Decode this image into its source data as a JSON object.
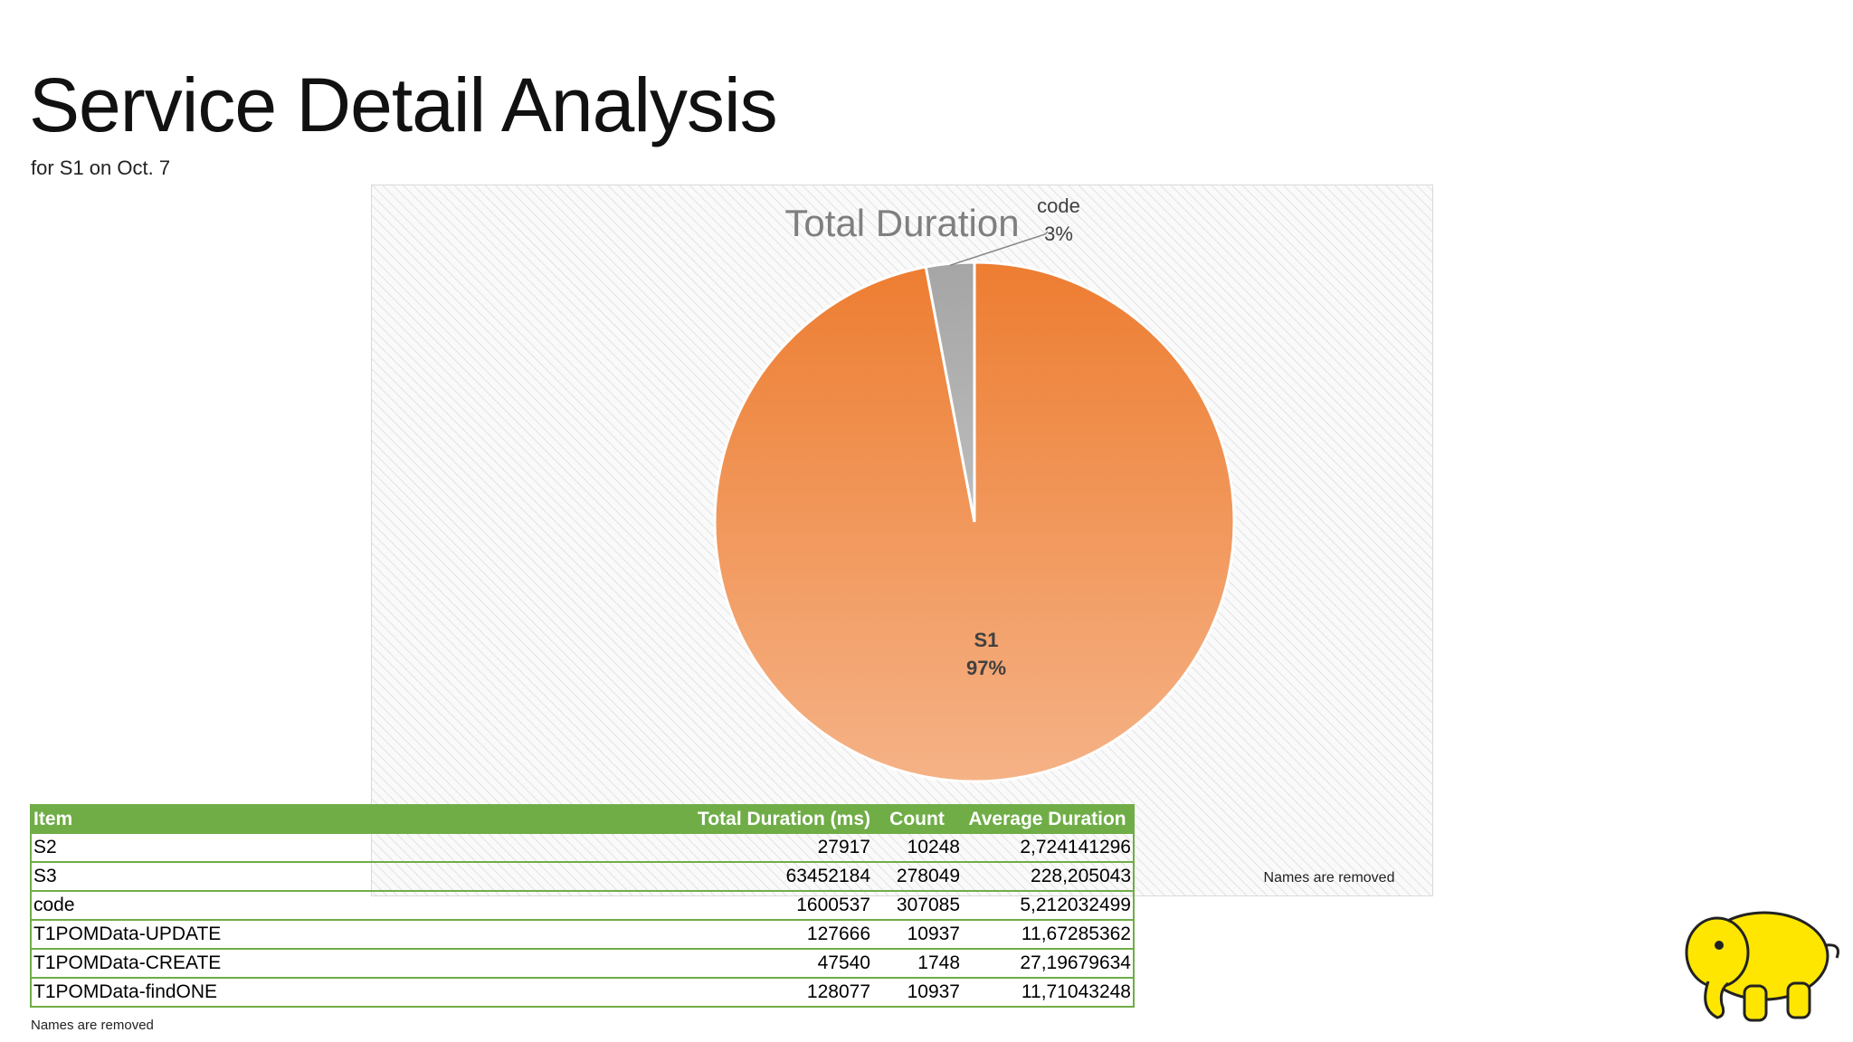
{
  "header": {
    "title": "Service Detail Analysis",
    "subtitle": "for S1 on Oct. 7"
  },
  "chart_data": {
    "type": "pie",
    "title": "Total Duration",
    "categories": [
      "S1",
      "code"
    ],
    "values": [
      97,
      3
    ],
    "value_labels": [
      "97%",
      "3%"
    ],
    "colors": [
      "#ed7d31",
      "#a5a5a5"
    ],
    "note": "Names are removed"
  },
  "table": {
    "columns": [
      "Item",
      "Total Duration (ms)",
      "Count",
      "Average Duration"
    ],
    "rows": [
      [
        "S2",
        "27917",
        "10248",
        "2,724141296"
      ],
      [
        "S3",
        "63452184",
        "278049",
        "228,205043"
      ],
      [
        "code",
        "1600537",
        "307085",
        "5,212032499"
      ],
      [
        "T1POMData-UPDATE",
        "127666",
        "10937",
        "11,67285362"
      ],
      [
        "T1POMData-CREATE",
        "47540",
        "1748",
        "27,19679634"
      ],
      [
        "T1POMData-findONE",
        "128077",
        "10937",
        "11,71043248"
      ]
    ],
    "note": "Names are removed"
  }
}
